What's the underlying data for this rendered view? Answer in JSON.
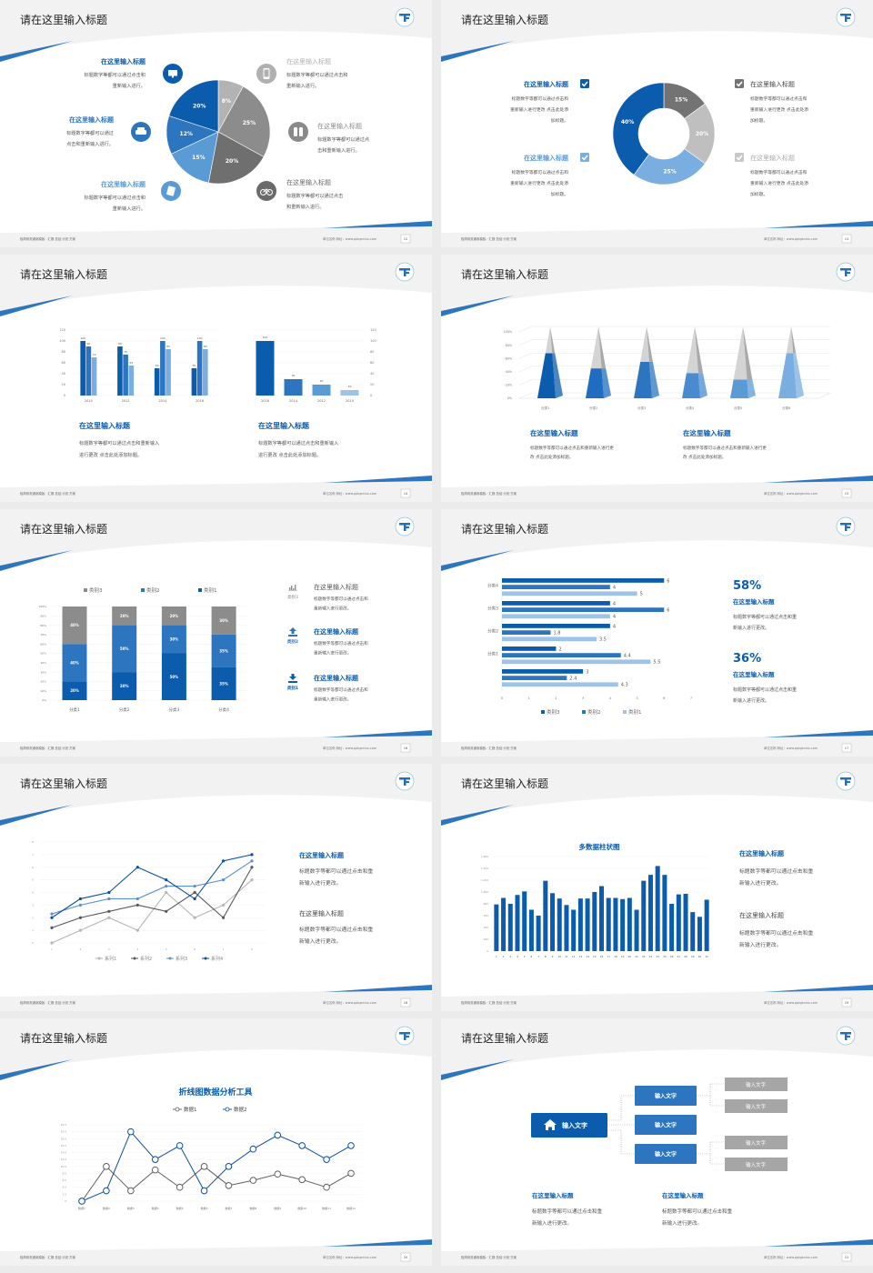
{
  "common": {
    "footer_left": "极简商务通用模板：汇报·总结·计划·方案",
    "footer_right": "单位名称  网址：www.pptgenius.com",
    "colors": {
      "dark_blue": "#0b5cad",
      "blue": "#2e75c0",
      "light_blue": "#5b9bd5",
      "pale_blue": "#9dc3e6",
      "gray": "#8c8c8c",
      "light_gray": "#bfbfbf",
      "dark_gray": "#6f6f6f"
    }
  },
  "slides": [
    {
      "page": "12",
      "title": "请在这里输入标题",
      "left_items": [
        {
          "title": "在这里输入标题",
          "desc": [
            "标题数字等都可以通过点击和",
            "重新输入进行。"
          ],
          "icon": "monitor-icon",
          "color": "#0b5cad"
        },
        {
          "title": "在这里输入标题",
          "desc": [
            "标题数字等都可以通过",
            "点击和重新输入进行。"
          ],
          "icon": "car-icon",
          "color": "#2e75c0"
        },
        {
          "title": "在这里输入标题",
          "desc": [
            "标题数字等都可以通过点击和",
            "重新输入进行。"
          ],
          "icon": "book-icon",
          "color": "#5b9bd5"
        }
      ],
      "right_items": [
        {
          "title": "在这里输入标题",
          "desc": [
            "标题数字等都可以通过点击和",
            "重新输入进行。"
          ],
          "icon": "phone-icon",
          "color": "#b0b0b0"
        },
        {
          "title": "在这里输入标题",
          "desc": [
            "标题数字等都可以通过点",
            "击和重新输入进行。"
          ],
          "icon": "binoculars-icon",
          "color": "#8a8a8a"
        },
        {
          "title": "在这里输入标题",
          "desc": [
            "标题数字等都可以通过点击",
            "和重新输入进行。"
          ],
          "icon": "bicycle-icon",
          "color": "#6a6a6a"
        }
      ]
    },
    {
      "page": "13",
      "title": "请在这里输入标题",
      "items": [
        {
          "title": "在这里输入标题",
          "desc": [
            "标题数字等都可以通过点击和",
            "重新输入进行更改 点击此处添",
            "加标题。"
          ],
          "color": "#0b5cad",
          "title_color": "#0b5cad"
        },
        {
          "title": "在这里输入标题",
          "desc": [
            "标题数字等都可以通过点击和",
            "重新输入进行更改 点击此处添",
            "加标题。"
          ],
          "color": "#7aaee0",
          "title_color": "#5b9bd5"
        },
        {
          "title": "在这里输入标题",
          "desc": [
            "标题数字等都可以通过点击和",
            "重新输入进行更改 点击此处添",
            "加标题。"
          ],
          "color": "#737373",
          "title_color": "#444444"
        },
        {
          "title": "在这里输入标题",
          "desc": [
            "标题数字等都可以通过点击和",
            "重新输入进行更改 点击此处添",
            "加标题。"
          ],
          "color": "#c8c8c8",
          "title_color": "#aaaaaa"
        }
      ]
    },
    {
      "page": "14",
      "title": "请在这里输入标题",
      "blocks": [
        {
          "title": "在这里输入标题",
          "desc": [
            "标题数字等都可以通过点击和重新输入",
            "进行更改 点击此处添加标题。"
          ]
        },
        {
          "title": "在这里输入标题",
          "desc": [
            "标题数字等都可以通过点击和重新输入",
            "进行更改 点击此处添加标题。"
          ]
        }
      ]
    },
    {
      "page": "15",
      "title": "请在这里输入标题",
      "blocks": [
        {
          "title": "在这里输入标题",
          "desc": [
            "标题数字等都可以通过点击和重新输入进行更",
            "改 点击此处添加标题。"
          ]
        },
        {
          "title": "在这里输入标题",
          "desc": [
            "标题数字等都可以通过点击和重新输入进行更",
            "改 点击此处添加标题。"
          ]
        }
      ]
    },
    {
      "page": "16",
      "title": "请在这里输入标题",
      "items": [
        {
          "icon": "bar-chart-icon",
          "icon_label": "类别3",
          "title": "在这里输入标题",
          "desc": [
            "标题数字等都可以通过点击和",
            "重新输入进行更改。"
          ],
          "color": "#8c8c8c"
        },
        {
          "icon": "upload-icon",
          "icon_label": "类别2",
          "title": "在这里输入标题",
          "desc": [
            "标题数字等都可以通过点击和",
            "重新输入进行更改。"
          ],
          "color": "#2e75c0"
        },
        {
          "icon": "download-icon",
          "icon_label": "类别1",
          "title": "在这里输入标题",
          "desc": [
            "标题数字等都可以通过点击和",
            "重新输入进行更改。"
          ],
          "color": "#0b5cad"
        }
      ]
    },
    {
      "page": "17",
      "title": "请在这里输入标题",
      "stats": [
        {
          "value": "58%",
          "title": "在这里输入标题",
          "desc": [
            "标题数字等都可以通过点击和重",
            "新输入进行更改。"
          ]
        },
        {
          "value": "36%",
          "title": "在这里输入标题",
          "desc": [
            "标题数字等都可以通过点击和重",
            "新输入进行更改。"
          ]
        }
      ]
    },
    {
      "page": "18",
      "title": "请在这里输入标题",
      "blocks": [
        {
          "title": "在这里输入标题",
          "desc": [
            "标题数字等都可以通过点击和重",
            "新输入进行更改。"
          ],
          "highlight": true
        },
        {
          "title": "在这里输入标题",
          "desc": [
            "标题数字等都可以通过点击和重",
            "新输入进行更改。"
          ],
          "highlight": false
        }
      ]
    },
    {
      "page": "19",
      "title": "请在这里输入标题",
      "blocks": [
        {
          "title": "在这里输入标题",
          "desc": [
            "标题数字等都可以通过点击和重",
            "新输入进行更改。"
          ],
          "highlight": true
        },
        {
          "title": "在这里输入标题",
          "desc": [
            "标题数字等都可以通过点击和重",
            "新输入进行更改。"
          ],
          "highlight": false
        }
      ]
    },
    {
      "page": "20",
      "title": "请在这里输入标题"
    },
    {
      "page": "21",
      "title": "请在这里输入标题",
      "tree": {
        "root": "输入文字",
        "root_icon": "home-icon",
        "children": [
          "输入文字",
          "输入文字",
          "输入文字"
        ],
        "leaves": [
          "输入文字",
          "输入文字",
          "输入文字",
          "输入文字"
        ]
      },
      "blocks": [
        {
          "title": "在这里输入标题",
          "desc": [
            "标题数字等都可以通过点击和重",
            "新输入进行更改。"
          ]
        },
        {
          "title": "在这里输入标题",
          "desc": [
            "标题数字等都可以通过点击和重",
            "新输入进行更改。"
          ]
        }
      ]
    }
  ],
  "chart_data": [
    {
      "type": "pie",
      "values": [
        8,
        25,
        20,
        15,
        12,
        20
      ],
      "labels": [
        "8%",
        "25%",
        "20%",
        "15%",
        "12%",
        "20%"
      ],
      "colors": [
        "#b3b3b3",
        "#8c8c8c",
        "#6f6f6f",
        "#5b9bd5",
        "#2e75c0",
        "#0b5cad"
      ]
    },
    {
      "type": "pie",
      "donut": true,
      "values": [
        15,
        20,
        25,
        40
      ],
      "labels": [
        "15%",
        "20%",
        "25%",
        "40%"
      ],
      "colors": [
        "#737373",
        "#bfbfbf",
        "#7aaee0",
        "#0b5cad"
      ]
    },
    {
      "type": "bar",
      "categories": [
        "2010",
        "2012",
        "2014",
        "2016"
      ],
      "series": [
        {
          "values": [
            100,
            90,
            50,
            50
          ]
        },
        {
          "values": [
            90,
            75,
            100,
            100
          ]
        },
        {
          "values": [
            70,
            55,
            85,
            85
          ]
        }
      ],
      "ylim": [
        0,
        120
      ],
      "yticks": [
        "0",
        "20",
        "40",
        "60",
        "80",
        "100",
        "120"
      ],
      "colors": [
        "#0b5cad",
        "#2e75c0",
        "#7aaee0"
      ]
    },
    {
      "type": "bar",
      "categories": [
        "2016",
        "2014",
        "2012",
        "2010"
      ],
      "values": [
        100,
        30,
        20,
        10
      ],
      "ylim": [
        0,
        120
      ],
      "yticks": [
        "0",
        "20",
        "40",
        "60",
        "80",
        "100",
        "120"
      ],
      "axis": "right",
      "colors": [
        "#0b5cad",
        "#2e75c0",
        "#5b9bd5",
        "#9dc3e6"
      ]
    },
    {
      "type": "bar",
      "style": "3d-pyramid",
      "categories": [
        "分类1",
        "分类2",
        "分类3",
        "分类4",
        "分类5",
        "分类6"
      ],
      "values": [
        68,
        45,
        55,
        38,
        28,
        68
      ],
      "ylim": [
        0,
        100
      ],
      "yticks": [
        "0%",
        "20%",
        "40%",
        "60%",
        "80%",
        "100%"
      ],
      "colors": [
        "#0b5cad",
        "#1f6cc0",
        "#2e75c0",
        "#4a8bd0",
        "#5b9bd5",
        "#7aaee0"
      ]
    },
    {
      "type": "bar",
      "stacked": true,
      "categories": [
        "分类1",
        "分类2",
        "分类3",
        "分类4"
      ],
      "series": [
        {
          "name": "类别1",
          "values": [
            20,
            30,
            50,
            35
          ],
          "labels": [
            "20%",
            "30%",
            "50%",
            "35%"
          ],
          "color": "#0b5cad"
        },
        {
          "name": "类别2",
          "values": [
            40,
            50,
            30,
            35
          ],
          "labels": [
            "40%",
            "50%",
            "30%",
            "35%"
          ],
          "color": "#2e75c0"
        },
        {
          "name": "类别3",
          "values": [
            40,
            20,
            20,
            30
          ],
          "labels": [
            "40%",
            "20%",
            "20%",
            "30%"
          ],
          "color": "#8c8c8c"
        }
      ],
      "ylim": [
        0,
        100
      ],
      "yticks": [
        "0%",
        "10%",
        "20%",
        "30%",
        "40%",
        "50%",
        "60%",
        "70%",
        "80%",
        "90%",
        "100%"
      ],
      "legend": "top"
    },
    {
      "type": "bar",
      "orientation": "horizontal",
      "categories": [
        "分类4",
        "分类3",
        "分类2",
        "分类1",
        ""
      ],
      "series": [
        {
          "name": "类别3",
          "values": [
            6,
            4,
            4,
            2,
            3
          ],
          "color": "#0b5cad"
        },
        {
          "name": "类别2",
          "values": [
            4,
            6,
            1.8,
            4.4,
            2.4
          ],
          "color": "#2e75c0"
        },
        {
          "name": "类别1",
          "values": [
            5,
            4,
            3.5,
            5.5,
            4.3
          ],
          "color": "#9dc3e6"
        }
      ],
      "xlim": [
        0,
        7
      ],
      "xticks": [
        "0",
        "1",
        "2",
        "3",
        "4",
        "5",
        "6",
        "7"
      ],
      "legend": "bottom"
    },
    {
      "type": "line",
      "x": [
        "1",
        "2",
        "3",
        "4",
        "5",
        "6",
        "7",
        "8"
      ],
      "series": [
        {
          "name": "系列1",
          "values": [
            0,
            1,
            2,
            1,
            4,
            2,
            3,
            5
          ],
          "color": "#b5b5b5"
        },
        {
          "name": "系列2",
          "values": [
            1.2,
            2,
            2.5,
            3,
            2.5,
            4,
            2,
            6
          ],
          "color": "#595959"
        },
        {
          "name": "系列3",
          "values": [
            2.3,
            3,
            3.5,
            3.5,
            4.5,
            4.5,
            5,
            6.5
          ],
          "color": "#5b8fd0"
        },
        {
          "name": "系列4",
          "values": [
            2,
            3.5,
            4,
            6,
            5,
            3.5,
            6.5,
            7
          ],
          "color": "#0b4ea2"
        }
      ],
      "ylim": [
        0,
        8
      ],
      "yticks": [
        "0",
        "1",
        "2",
        "3",
        "4",
        "5",
        "6",
        "7",
        "8"
      ],
      "legend": "bottom"
    },
    {
      "type": "bar",
      "title": "多数据柱状图",
      "categories": [
        "1",
        "2",
        "3",
        "4",
        "5",
        "6",
        "7",
        "8",
        "9",
        "10",
        "11",
        "12",
        "13",
        "14",
        "15",
        "16",
        "17",
        "18",
        "19",
        "20",
        "21",
        "22",
        "23",
        "24",
        "25",
        "26",
        "27",
        "28",
        "29",
        "30",
        "31"
      ],
      "values": [
        790,
        900,
        800,
        950,
        1010,
        700,
        600,
        1190,
        980,
        890,
        780,
        700,
        890,
        890,
        1000,
        1100,
        900,
        900,
        880,
        900,
        700,
        1190,
        1290,
        1440,
        1290,
        800,
        960,
        970,
        660,
        580,
        870
      ],
      "ylim": [
        0,
        1600
      ],
      "yticks": [
        "0",
        "200",
        "400",
        "600",
        "800",
        "1,000",
        "1,200",
        "1,400",
        "1,600"
      ],
      "color": "#0b5cad"
    },
    {
      "type": "line",
      "title": "折线图数据分析工具",
      "categories": [
        "数据1",
        "数据2",
        "数据3",
        "数据4",
        "数据5",
        "数据6",
        "数据7",
        "数据8",
        "数据9",
        "数据10",
        "数据11",
        "数据12"
      ],
      "series": [
        {
          "name": "数据1",
          "values": [
            0,
            10,
            3,
            9,
            4,
            10,
            4.5,
            6,
            7.8,
            6.2,
            4,
            8
          ],
          "color": "#606060"
        },
        {
          "name": "数据2",
          "values": [
            0,
            3,
            20,
            12,
            16,
            3,
            10,
            15,
            19,
            16,
            12,
            16
          ],
          "color": "#0b4ea2"
        }
      ],
      "ylim": [
        0,
        22
      ],
      "yticks": [
        "0",
        "2.0",
        "4.0",
        "6.0",
        "8.0",
        "10.0",
        "12.0",
        "14.0",
        "16.0",
        "18.0",
        "20.0",
        "22.0"
      ],
      "legend": "top"
    }
  ]
}
